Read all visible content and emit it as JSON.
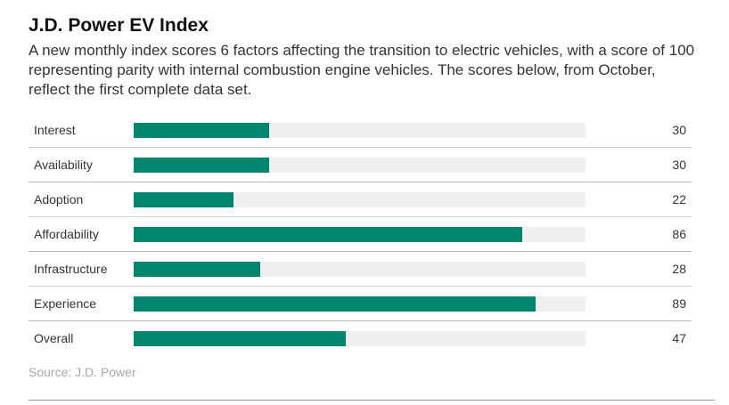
{
  "title": "J.D. Power EV Index",
  "subtitle": "A new monthly index scores 6 factors affecting the transition to electric vehicles, with a score of 100 representing parity with internal combustion engine vehicles. The scores below, from October, reflect the first complete data set.",
  "source": "Source: J.D. Power",
  "colors": {
    "bar": "#00866e",
    "track": "#efefef",
    "divider": "#cfcfcf"
  },
  "chart_data": {
    "type": "bar",
    "orientation": "horizontal",
    "categories": [
      "Interest",
      "Availability",
      "Adoption",
      "Affordability",
      "Infrastructure",
      "Experience",
      "Overall"
    ],
    "values": [
      30,
      30,
      22,
      86,
      28,
      89,
      47
    ],
    "value_labels": [
      "30",
      "30",
      "22",
      "86",
      "28",
      "89",
      "47"
    ],
    "xlim": [
      0,
      100
    ],
    "grid": false,
    "legend": "none"
  }
}
